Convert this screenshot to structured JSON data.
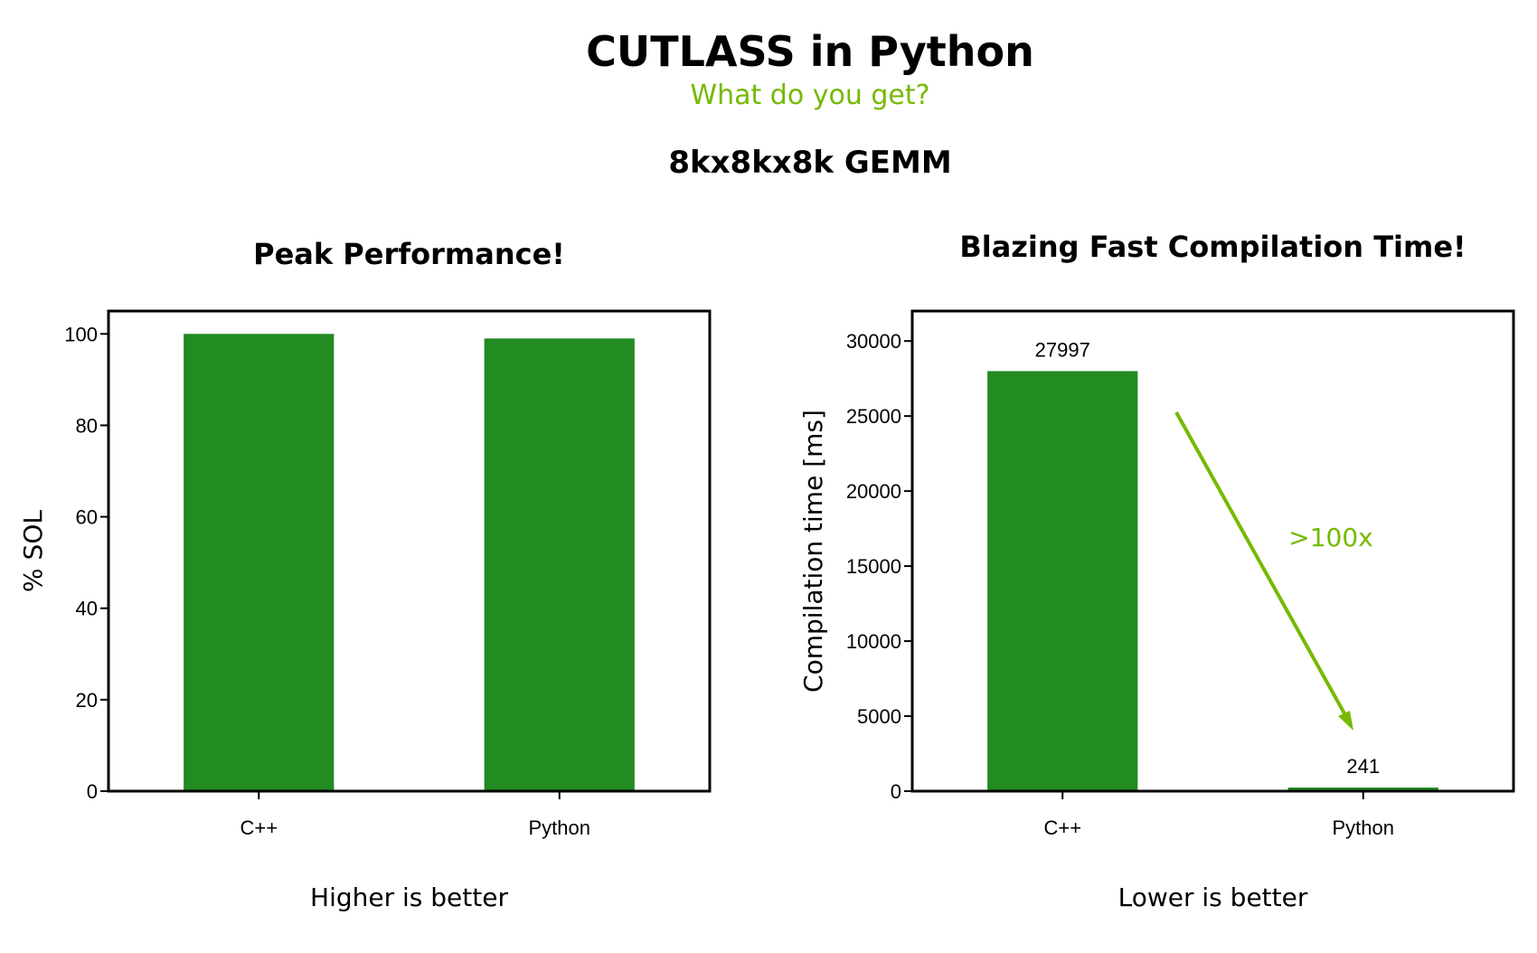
{
  "header": {
    "title": "CUTLASS in Python",
    "subtitle": "What do you get?",
    "section": "8kx8kx8k GEMM"
  },
  "colors": {
    "bar": "#228B22",
    "accent": "#76b900"
  },
  "chart_data": [
    {
      "type": "bar",
      "title": "Peak Performance!",
      "categories": [
        "C++",
        "Python"
      ],
      "values": [
        100,
        99
      ],
      "xlabel": "",
      "ylabel": "% SOL",
      "ylim": [
        0,
        105
      ],
      "yticks": [
        0,
        20,
        40,
        60,
        80,
        100
      ],
      "grid": false,
      "footnote": "Higher is better"
    },
    {
      "type": "bar",
      "title": "Blazing Fast Compilation Time!",
      "categories": [
        "C++",
        "Python"
      ],
      "values": [
        27997,
        241
      ],
      "data_labels": [
        "27997",
        "241"
      ],
      "xlabel": "",
      "ylabel": "Compilation time [ms]",
      "ylim": [
        0,
        32000
      ],
      "yticks": [
        0,
        5000,
        10000,
        15000,
        20000,
        25000,
        30000
      ],
      "grid": false,
      "annotation": ">100x",
      "footnote": "Lower is better"
    }
  ]
}
